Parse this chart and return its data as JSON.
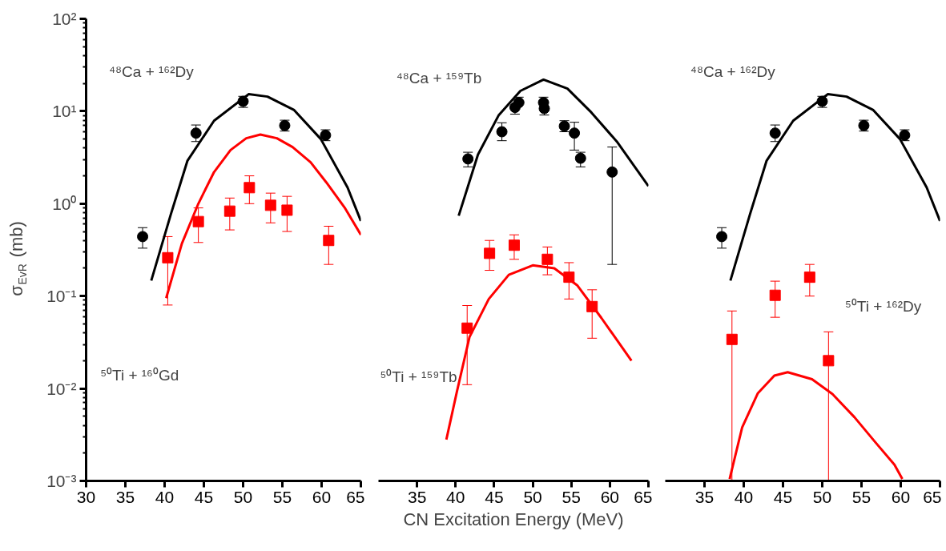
{
  "chart_data": [
    {
      "type": "scatter",
      "ylabel": "σ$_{EvR}$ (mb)",
      "xlim": [
        30,
        65
      ],
      "ylim": [
        0.001,
        100
      ],
      "log": "y",
      "grid": false,
      "xticks": [
        30,
        35,
        40,
        45,
        50,
        55,
        60,
        65
      ],
      "yticks": [
        {
          "value": 0.001,
          "label": "10⁻³"
        },
        {
          "value": 0.01,
          "label": "10⁻²"
        },
        {
          "value": 0.1,
          "label": "10⁻¹"
        },
        {
          "value": 1,
          "label": "10⁰"
        },
        {
          "value": 10,
          "label": "10¹"
        },
        {
          "value": 100,
          "label": "10²"
        }
      ],
      "annotations": [
        "⁴⁸Ca + ¹⁶²Dy",
        "⁵⁰Ti + ¹⁶⁰Gd"
      ],
      "series": [
        {
          "type": "line",
          "color": "#000000",
          "x": [
            38.3,
            40.8,
            42.9,
            46.3,
            50.7,
            53.1,
            56.5,
            59.9,
            63.3,
            65
          ],
          "values": [
            0.147,
            0.77,
            2.9,
            7.9,
            15.3,
            14.4,
            10.3,
            5.0,
            1.5,
            0.65
          ]
        },
        {
          "type": "line",
          "color": "#ff0000",
          "x": [
            40.2,
            42.2,
            44.3,
            46.3,
            48.4,
            50.4,
            52.2,
            54.3,
            56.3,
            58.6,
            60.6,
            63.0,
            65
          ],
          "values": [
            0.095,
            0.37,
            1.0,
            2.2,
            3.8,
            5.1,
            5.6,
            5.1,
            4.1,
            2.8,
            1.7,
            0.89,
            0.46
          ]
        },
        {
          "marker": "circle",
          "color": "#000000",
          "x": [
            37.2,
            44,
            50,
            55.3,
            60.5
          ],
          "values": [
            0.44,
            5.8,
            12.8,
            7.0,
            5.5
          ],
          "errors": [
            [
              0.33,
              0.55
            ],
            [
              4.7,
              7.1
            ],
            [
              11,
              14.5
            ],
            [
              6.1,
              8.0
            ],
            [
              4.8,
              6.3
            ]
          ]
        },
        {
          "marker": "square",
          "color": "#ff0000",
          "x": [
            40.4,
            44.3,
            48.3,
            50.8,
            53.5,
            55.6,
            60.9
          ],
          "values": [
            0.26,
            0.64,
            0.83,
            1.49,
            0.96,
            0.85,
            0.4
          ],
          "errors": [
            [
              0.08,
              0.44
            ],
            [
              0.38,
              0.9
            ],
            [
              0.52,
              1.15
            ],
            [
              1.0,
              2.0
            ],
            [
              0.62,
              1.3
            ],
            [
              0.5,
              1.2
            ],
            [
              0.22,
              0.57
            ]
          ]
        }
      ]
    },
    {
      "type": "scatter",
      "xlabel": "CN Excitation Energy (MeV)",
      "xlim": [
        30,
        65
      ],
      "ylim": [
        0.001,
        100
      ],
      "log": "y",
      "grid": false,
      "tick_labels": "x",
      "xticks": [
        35,
        40,
        45,
        50,
        55,
        60,
        65
      ],
      "annotations": [
        "⁴⁸Ca + ¹⁵⁹Tb",
        "⁵⁰Ti + ¹⁵⁹Tb"
      ],
      "series": [
        {
          "type": "line",
          "color": "#000000",
          "x": [
            40.4,
            42.9,
            45.6,
            48.4,
            51.4,
            54.5,
            57.6,
            60.9,
            65
          ],
          "values": [
            0.74,
            3.4,
            9.1,
            16.6,
            22,
            17.6,
            9.7,
            4.7,
            1.55
          ]
        },
        {
          "type": "line",
          "color": "#ff0000",
          "x": [
            38.8,
            40.2,
            41.8,
            44.3,
            46.9,
            50.0,
            52.8,
            55.8,
            58.9,
            62.8
          ],
          "values": [
            0.0028,
            0.0095,
            0.036,
            0.093,
            0.17,
            0.215,
            0.2,
            0.13,
            0.058,
            0.02
          ]
        },
        {
          "marker": "circle",
          "color": "#000000",
          "x": [
            41.6,
            46.0,
            47.7,
            48.2,
            51.4,
            51.5,
            54.1,
            55.4,
            56.2,
            60.3
          ],
          "values": [
            3.05,
            6.0,
            11,
            12.4,
            12.4,
            10.7,
            6.9,
            5.8,
            3.1,
            2.2
          ],
          "errors": [
            [
              2.5,
              3.6
            ],
            [
              4.8,
              7.5
            ],
            [
              9.3,
              11
            ],
            [
              12.4,
              14.2
            ],
            [
              12.4,
              14.2
            ],
            [
              9.1,
              10.7
            ],
            [
              6.0,
              7.9
            ],
            [
              3.8,
              7.6
            ],
            [
              2.5,
              3.6
            ],
            [
              0.22,
              4.1
            ]
          ]
        },
        {
          "marker": "square",
          "color": "#ff0000",
          "x": [
            41.5,
            44.4,
            47.6,
            51.9,
            54.7,
            57.7
          ],
          "values": [
            0.045,
            0.29,
            0.355,
            0.25,
            0.16,
            0.077
          ],
          "errors": [
            [
              0.011,
              0.079
            ],
            [
              0.19,
              0.4
            ],
            [
              0.25,
              0.46
            ],
            [
              0.17,
              0.34
            ],
            [
              0.093,
              0.23
            ],
            [
              0.035,
              0.117
            ]
          ]
        }
      ]
    },
    {
      "type": "scatter",
      "xlim": [
        30,
        65
      ],
      "ylim": [
        0.001,
        100
      ],
      "log": "y",
      "grid": false,
      "tick_labels": "x",
      "xticks": [
        35,
        40,
        45,
        50,
        55,
        60,
        65
      ],
      "annotations": [
        "⁴⁸Ca + ¹⁶²Dy",
        "⁵⁰Ti + ¹⁶²Dy"
      ],
      "series": [
        {
          "type": "line",
          "color": "#000000",
          "x": [
            38.3,
            40.8,
            42.9,
            46.3,
            50.7,
            53.1,
            56.5,
            59.9,
            63.3,
            65
          ],
          "values": [
            0.147,
            0.77,
            2.9,
            7.9,
            15.3,
            14.4,
            10.3,
            5.0,
            1.5,
            0.65
          ]
        },
        {
          "type": "line",
          "color": "#ff0000",
          "x": [
            38.2,
            39.8,
            41.8,
            43.9,
            45.6,
            48.7,
            51.3,
            54.1,
            56.8,
            59.2,
            60.2
          ],
          "values": [
            0.00105,
            0.0038,
            0.0089,
            0.0138,
            0.015,
            0.0126,
            0.0087,
            0.0049,
            0.0026,
            0.0015,
            0.00105
          ]
        },
        {
          "marker": "circle",
          "color": "#000000",
          "x": [
            37.2,
            44,
            50,
            55.3,
            60.5
          ],
          "values": [
            0.44,
            5.8,
            12.8,
            7.0,
            5.5
          ],
          "errors": [
            [
              0.33,
              0.55
            ],
            [
              4.7,
              7.1
            ],
            [
              11,
              14.5
            ],
            [
              6.1,
              8.0
            ],
            [
              4.8,
              6.3
            ]
          ]
        },
        {
          "marker": "square",
          "color": "#ff0000",
          "x": [
            38.5,
            44.0,
            48.4,
            50.8
          ],
          "values": [
            0.034,
            0.102,
            0.16,
            0.02
          ],
          "errors": [
            [
              0.001,
              0.069
            ],
            [
              0.059,
              0.145
            ],
            [
              0.1,
              0.22
            ],
            [
              0.001,
              0.041
            ]
          ]
        }
      ]
    }
  ]
}
